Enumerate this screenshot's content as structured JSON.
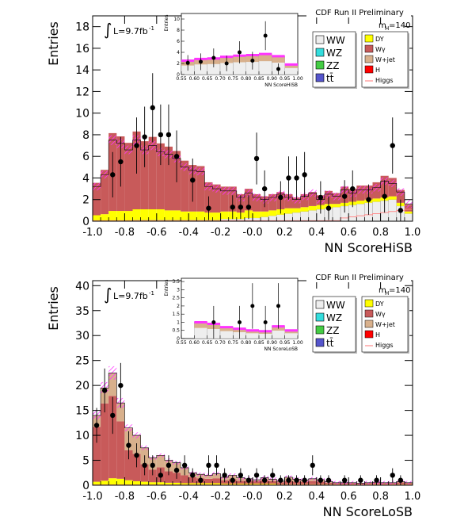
{
  "colors": {
    "WW": "#eeeeee",
    "WZ": "#33dddd",
    "ZZ": "#44cc44",
    "tt": "#5555cc",
    "DY": "#ffff00",
    "Wgamma": "#c85a5a",
    "Wjet": "#d8b08c",
    "H": "#ff0000",
    "Higgs": "#ff8c8c",
    "uncertainty": "#ff33ff"
  },
  "chart_data": [
    {
      "type": "bar",
      "title": "CDF Run II Preliminary",
      "mass_label": "m",
      "mass_sub": "H",
      "mass_value": "=140",
      "lumi_text": "L=9.7fb",
      "lumi_sup": "-1",
      "integral_symbol": "∫",
      "xlabel": "NN ScoreHiSB",
      "ylabel": "Entries",
      "xlim": [
        -1.0,
        1.0
      ],
      "ylim": [
        0,
        19
      ],
      "xticks": [
        "-1.0",
        "-0.8",
        "-0.6",
        "-0.4",
        "-0.2",
        "-0.0",
        "0.2",
        "0.4",
        "0.6",
        "0.8",
        "1.0"
      ],
      "yticks": [
        "0",
        "2",
        "4",
        "6",
        "8",
        "10",
        "12",
        "14",
        "16",
        "18"
      ],
      "legend_left": [
        "WW",
        "WZ",
        "ZZ",
        "tt̄"
      ],
      "legend_right": [
        "DY",
        "Wγ",
        "W+jet",
        "H",
        "Higgs"
      ],
      "bin_width": 0.05,
      "stack_total": [
        3.2,
        4.3,
        7.5,
        7.2,
        6.6,
        7.5,
        6.6,
        7.0,
        6.4,
        6.2,
        5.8,
        5.0,
        4.7,
        4.6,
        3.2,
        3.0,
        2.8,
        2.8,
        2.2,
        2.6,
        2.2,
        2.0,
        2.2,
        2.5,
        2.2,
        2.0,
        2.3,
        2.6,
        2.0,
        2.5,
        2.3,
        2.9,
        2.6,
        2.9,
        2.9,
        3.1,
        3.7,
        3.5,
        2.7,
        1.6
      ],
      "wgamma": [
        3.0,
        4.1,
        7.2,
        6.9,
        6.3,
        7.2,
        6.3,
        6.7,
        6.1,
        5.9,
        5.5,
        4.7,
        4.3,
        4.2,
        2.8,
        2.6,
        2.3,
        2.3,
        1.7,
        2.0,
        1.6,
        1.4,
        1.5,
        1.6,
        1.3,
        1.0,
        1.2,
        1.3,
        0.9,
        1.2,
        1.0,
        1.5,
        1.2,
        1.4,
        1.3,
        1.5,
        2.0,
        1.7,
        1.2,
        0.6
      ],
      "dy": [
        0.5,
        0.6,
        0.9,
        0.9,
        0.9,
        1.0,
        1.0,
        1.0,
        1.0,
        0.9,
        0.9,
        0.8,
        0.8,
        0.8,
        0.7,
        0.7,
        0.7,
        0.7,
        0.6,
        0.7,
        0.6,
        0.5,
        0.5,
        0.5,
        0.5,
        0.4,
        0.4,
        0.4,
        0.4,
        0.4,
        0.3,
        0.3,
        0.3,
        0.3,
        0.3,
        0.3,
        0.3,
        0.3,
        0.3,
        0.2
      ],
      "ww": [
        0.05,
        0.05,
        0.05,
        0.05,
        0.05,
        0.1,
        0.1,
        0.1,
        0.1,
        0.1,
        0.1,
        0.1,
        0.1,
        0.1,
        0.1,
        0.1,
        0.2,
        0.2,
        0.2,
        0.3,
        0.3,
        0.4,
        0.5,
        0.6,
        0.7,
        0.8,
        0.9,
        1.0,
        1.1,
        1.2,
        1.3,
        1.4,
        1.5,
        1.6,
        1.7,
        1.8,
        1.9,
        2.0,
        1.4,
        0.7
      ],
      "data_points": [
        {
          "x": -0.875,
          "y": 4.3,
          "e": 2.1
        },
        {
          "x": -0.825,
          "y": 5.5,
          "e": 2.3
        },
        {
          "x": -0.725,
          "y": 7.0,
          "e": 2.6
        },
        {
          "x": -0.675,
          "y": 7.8,
          "e": 2.8
        },
        {
          "x": -0.625,
          "y": 10.5,
          "e": 3.2
        },
        {
          "x": -0.575,
          "y": 8.0,
          "e": 2.8
        },
        {
          "x": -0.525,
          "y": 8.0,
          "e": 2.8
        },
        {
          "x": -0.475,
          "y": 6.0,
          "e": 2.4
        },
        {
          "x": -0.375,
          "y": 3.8,
          "e": 2.0
        },
        {
          "x": -0.275,
          "y": 1.2,
          "e": 1.1
        },
        {
          "x": -0.125,
          "y": 1.3,
          "e": 1.1
        },
        {
          "x": -0.075,
          "y": 1.3,
          "e": 1.1
        },
        {
          "x": -0.025,
          "y": 1.3,
          "e": 1.1
        },
        {
          "x": 0.025,
          "y": 5.8,
          "e": 2.4
        },
        {
          "x": 0.075,
          "y": 3.0,
          "e": 1.7
        },
        {
          "x": 0.175,
          "y": 2.2,
          "e": 1.5
        },
        {
          "x": 0.225,
          "y": 4.0,
          "e": 2.0
        },
        {
          "x": 0.275,
          "y": 4.0,
          "e": 2.0
        },
        {
          "x": 0.325,
          "y": 4.3,
          "e": 2.1
        },
        {
          "x": 0.425,
          "y": 2.2,
          "e": 1.5
        },
        {
          "x": 0.475,
          "y": 1.2,
          "e": 1.1
        },
        {
          "x": 0.575,
          "y": 2.3,
          "e": 1.5
        },
        {
          "x": 0.625,
          "y": 3.0,
          "e": 1.7
        },
        {
          "x": 0.725,
          "y": 2.0,
          "e": 1.4
        },
        {
          "x": 0.825,
          "y": 2.3,
          "e": 1.5
        },
        {
          "x": 0.875,
          "y": 7.0,
          "e": 2.6
        },
        {
          "x": 0.925,
          "y": 1.0,
          "e": 1.0
        }
      ],
      "inset": {
        "ylabel": "Entries",
        "xlabel": "NN ScoreHiSB",
        "xlim": [
          0.55,
          1.0
        ],
        "ylim": [
          0,
          11
        ],
        "xticks": [
          "0.55",
          "0.60",
          "0.65",
          "0.70",
          "0.75",
          "0.80",
          "0.85",
          "0.90",
          "0.95",
          "1.00"
        ],
        "yticks": [
          "0",
          "2",
          "4",
          "6",
          "8",
          "10"
        ],
        "bin_edges": [
          0.55,
          0.6,
          0.65,
          0.7,
          0.75,
          0.8,
          0.85,
          0.9,
          0.95,
          1.0
        ],
        "stack_total": [
          2.5,
          2.8,
          2.9,
          3.2,
          3.4,
          3.5,
          3.7,
          3.3,
          1.8
        ],
        "data_points": [
          {
            "x": 0.575,
            "y": 2.1,
            "e": 1.4
          },
          {
            "x": 0.625,
            "y": 2.3,
            "e": 1.5
          },
          {
            "x": 0.675,
            "y": 3.0,
            "e": 1.7
          },
          {
            "x": 0.725,
            "y": 2.0,
            "e": 1.4
          },
          {
            "x": 0.775,
            "y": 4.0,
            "e": 2.0
          },
          {
            "x": 0.825,
            "y": 2.5,
            "e": 1.6
          },
          {
            "x": 0.875,
            "y": 7.0,
            "e": 2.6
          },
          {
            "x": 0.925,
            "y": 1.0,
            "e": 1.0
          }
        ]
      }
    },
    {
      "type": "bar",
      "title": "CDF Run II Preliminary",
      "mass_label": "m",
      "mass_sub": "H",
      "mass_value": "=140",
      "lumi_text": "L=9.7fb",
      "lumi_sup": "-1",
      "integral_symbol": "∫",
      "xlabel": "NN ScoreLoSB",
      "ylabel": "Entries",
      "xlim": [
        -1.0,
        1.0
      ],
      "ylim": [
        0,
        41
      ],
      "xticks": [
        "-1.0",
        "-0.8",
        "-0.6",
        "-0.4",
        "-0.2",
        "-0.0",
        "0.2",
        "0.4",
        "0.6",
        "0.8",
        "1.0"
      ],
      "yticks": [
        "0",
        "5",
        "10",
        "15",
        "20",
        "25",
        "30",
        "35",
        "40"
      ],
      "legend_left": [
        "WW",
        "WZ",
        "ZZ",
        "tt̄"
      ],
      "legend_right": [
        "DY",
        "Wγ",
        "W+jet",
        "H",
        "Higgs"
      ],
      "bin_width": 0.05,
      "stack_total": [
        14.0,
        19.5,
        22.5,
        16.5,
        11.5,
        10.0,
        7.5,
        5.5,
        6.0,
        5.0,
        4.5,
        3.5,
        2.5,
        2.2,
        2.0,
        2.3,
        1.6,
        2.0,
        1.5,
        1.3,
        1.1,
        1.5,
        1.2,
        0.8,
        1.6,
        1.2,
        1.0,
        1.3,
        1.1,
        0.7,
        0.5,
        0.5,
        0.5,
        0.4,
        0.5,
        0.6,
        0.5,
        0.5,
        0.7,
        0.5
      ],
      "wgamma": [
        11.0,
        15.5,
        16.5,
        11.5,
        6.0,
        5.5,
        3.5,
        2.5,
        3.0,
        2.3,
        2.0,
        1.6,
        1.2,
        1.0,
        0.9,
        1.0,
        0.7,
        0.9,
        0.6,
        0.6,
        0.5,
        0.7,
        0.5,
        0.4,
        0.7,
        0.5,
        0.5,
        0.6,
        0.5,
        0.3,
        0.25,
        0.25,
        0.25,
        0.2,
        0.25,
        0.3,
        0.25,
        0.25,
        0.35,
        0.25
      ],
      "dy": [
        0.6,
        0.8,
        1.3,
        1.2,
        0.9,
        0.7,
        0.6,
        0.5,
        0.5,
        0.4,
        0.4,
        0.3,
        0.3,
        0.3,
        0.3,
        0.3,
        0.2,
        0.2,
        0.2,
        0.2,
        0.2,
        0.2,
        0.2,
        0.1,
        0.1,
        0.1,
        0.1,
        0.1,
        0.1,
        0.1,
        0.1,
        0.1,
        0.1,
        0.1,
        0.1,
        0.1,
        0.1,
        0.1,
        0.1,
        0.1
      ],
      "ww": [
        0.1,
        0.1,
        0.1,
        0.1,
        0.1,
        0.1,
        0.1,
        0.1,
        0.1,
        0.1,
        0.1,
        0.1,
        0.1,
        0.1,
        0.1,
        0.1,
        0.1,
        0.1,
        0.1,
        0.1,
        0.1,
        0.1,
        0.1,
        0.1,
        0.1,
        0.1,
        0.1,
        0.1,
        0.1,
        0.1,
        0.1,
        0.1,
        0.1,
        0.1,
        0.1,
        0.1,
        0.1,
        0.1,
        0.1,
        0.1
      ],
      "data_points": [
        {
          "x": -0.975,
          "y": 12.0,
          "e": 3.5
        },
        {
          "x": -0.925,
          "y": 19.0,
          "e": 4.4
        },
        {
          "x": -0.875,
          "y": 14.0,
          "e": 3.7
        },
        {
          "x": -0.825,
          "y": 20.0,
          "e": 4.5
        },
        {
          "x": -0.775,
          "y": 8.0,
          "e": 2.8
        },
        {
          "x": -0.725,
          "y": 6.0,
          "e": 2.4
        },
        {
          "x": -0.675,
          "y": 4.0,
          "e": 2.0
        },
        {
          "x": -0.625,
          "y": 4.0,
          "e": 2.0
        },
        {
          "x": -0.575,
          "y": 2.0,
          "e": 1.4
        },
        {
          "x": -0.525,
          "y": 4.0,
          "e": 2.0
        },
        {
          "x": -0.475,
          "y": 3.0,
          "e": 1.7
        },
        {
          "x": -0.425,
          "y": 4.0,
          "e": 2.0
        },
        {
          "x": -0.375,
          "y": 2.0,
          "e": 1.4
        },
        {
          "x": -0.325,
          "y": 1.0,
          "e": 1.0
        },
        {
          "x": -0.275,
          "y": 4.0,
          "e": 2.0
        },
        {
          "x": -0.225,
          "y": 4.0,
          "e": 2.0
        },
        {
          "x": -0.175,
          "y": 2.0,
          "e": 1.4
        },
        {
          "x": -0.125,
          "y": 1.0,
          "e": 1.0
        },
        {
          "x": -0.075,
          "y": 2.0,
          "e": 1.4
        },
        {
          "x": -0.025,
          "y": 1.0,
          "e": 1.0
        },
        {
          "x": 0.025,
          "y": 2.0,
          "e": 1.4
        },
        {
          "x": 0.075,
          "y": 1.0,
          "e": 1.0
        },
        {
          "x": 0.125,
          "y": 2.0,
          "e": 1.4
        },
        {
          "x": 0.175,
          "y": 1.0,
          "e": 1.0
        },
        {
          "x": 0.225,
          "y": 1.0,
          "e": 1.0
        },
        {
          "x": 0.275,
          "y": 1.0,
          "e": 1.0
        },
        {
          "x": 0.325,
          "y": 1.0,
          "e": 1.0
        },
        {
          "x": 0.375,
          "y": 4.0,
          "e": 2.0
        },
        {
          "x": 0.425,
          "y": 1.0,
          "e": 1.0
        },
        {
          "x": 0.475,
          "y": 1.0,
          "e": 1.0
        },
        {
          "x": 0.575,
          "y": 1.0,
          "e": 1.0
        },
        {
          "x": 0.675,
          "y": 1.0,
          "e": 1.0
        },
        {
          "x": 0.775,
          "y": 1.0,
          "e": 1.0
        },
        {
          "x": 0.875,
          "y": 2.0,
          "e": 1.4
        },
        {
          "x": 0.925,
          "y": 1.0,
          "e": 1.0
        }
      ],
      "inset": {
        "ylabel": "Entries",
        "xlabel": "NN ScoreLoSB",
        "xlim": [
          0.55,
          1.0
        ],
        "ylim": [
          0,
          3.7
        ],
        "xticks": [
          "0.55",
          "0.60",
          "0.65",
          "0.70",
          "0.75",
          "0.80",
          "0.85",
          "0.90",
          "0.95",
          "1.00"
        ],
        "yticks": [
          "0",
          "0.5",
          "1",
          "1.5",
          "2",
          "2.5",
          "3",
          "3.5"
        ],
        "bin_edges": [
          0.55,
          0.6,
          0.65,
          0.7,
          0.75,
          0.8,
          0.85,
          0.9,
          0.95,
          1.0
        ],
        "stack_total": [
          0.0,
          1.0,
          0.9,
          0.7,
          0.6,
          0.5,
          0.45,
          0.75,
          0.5
        ],
        "data_points": [
          {
            "x": 0.675,
            "y": 1.0,
            "e": 1.0
          },
          {
            "x": 0.775,
            "y": 1.0,
            "e": 1.0
          },
          {
            "x": 0.825,
            "y": 2.0,
            "e": 1.4
          },
          {
            "x": 0.875,
            "y": 1.0,
            "e": 1.0
          },
          {
            "x": 0.925,
            "y": 2.0,
            "e": 1.4
          }
        ]
      }
    }
  ]
}
